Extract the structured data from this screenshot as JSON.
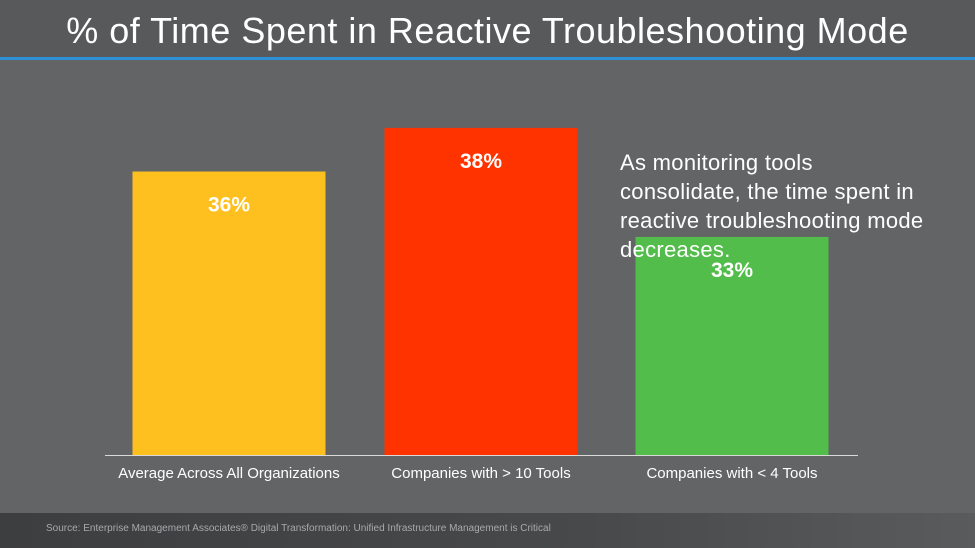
{
  "chart_data": {
    "type": "bar",
    "title": "% of Time Spent in Reactive Troubleshooting Mode",
    "categories": [
      "Average Across All Organizations",
      "Companies with > 10 Tools",
      "Companies with < 4 Tools"
    ],
    "values": [
      36,
      38,
      33
    ],
    "value_labels": [
      "36%",
      "38%",
      "33%"
    ],
    "colors": [
      "#fec01e",
      "#ff3300",
      "#52bd4a"
    ],
    "ylim": [
      23,
      38.5
    ],
    "grid": false,
    "annotation": "As monitoring tools consolidate, the time spent in reactive troubleshooting mode decreases."
  },
  "footer": {
    "source": "Source: Enterprise Management Associates® Digital Transformation: Unified Infrastructure Management is Critical"
  },
  "colors": {
    "background": "#636466",
    "title_rule": "#2f8fd6",
    "text": "#ffffff"
  }
}
